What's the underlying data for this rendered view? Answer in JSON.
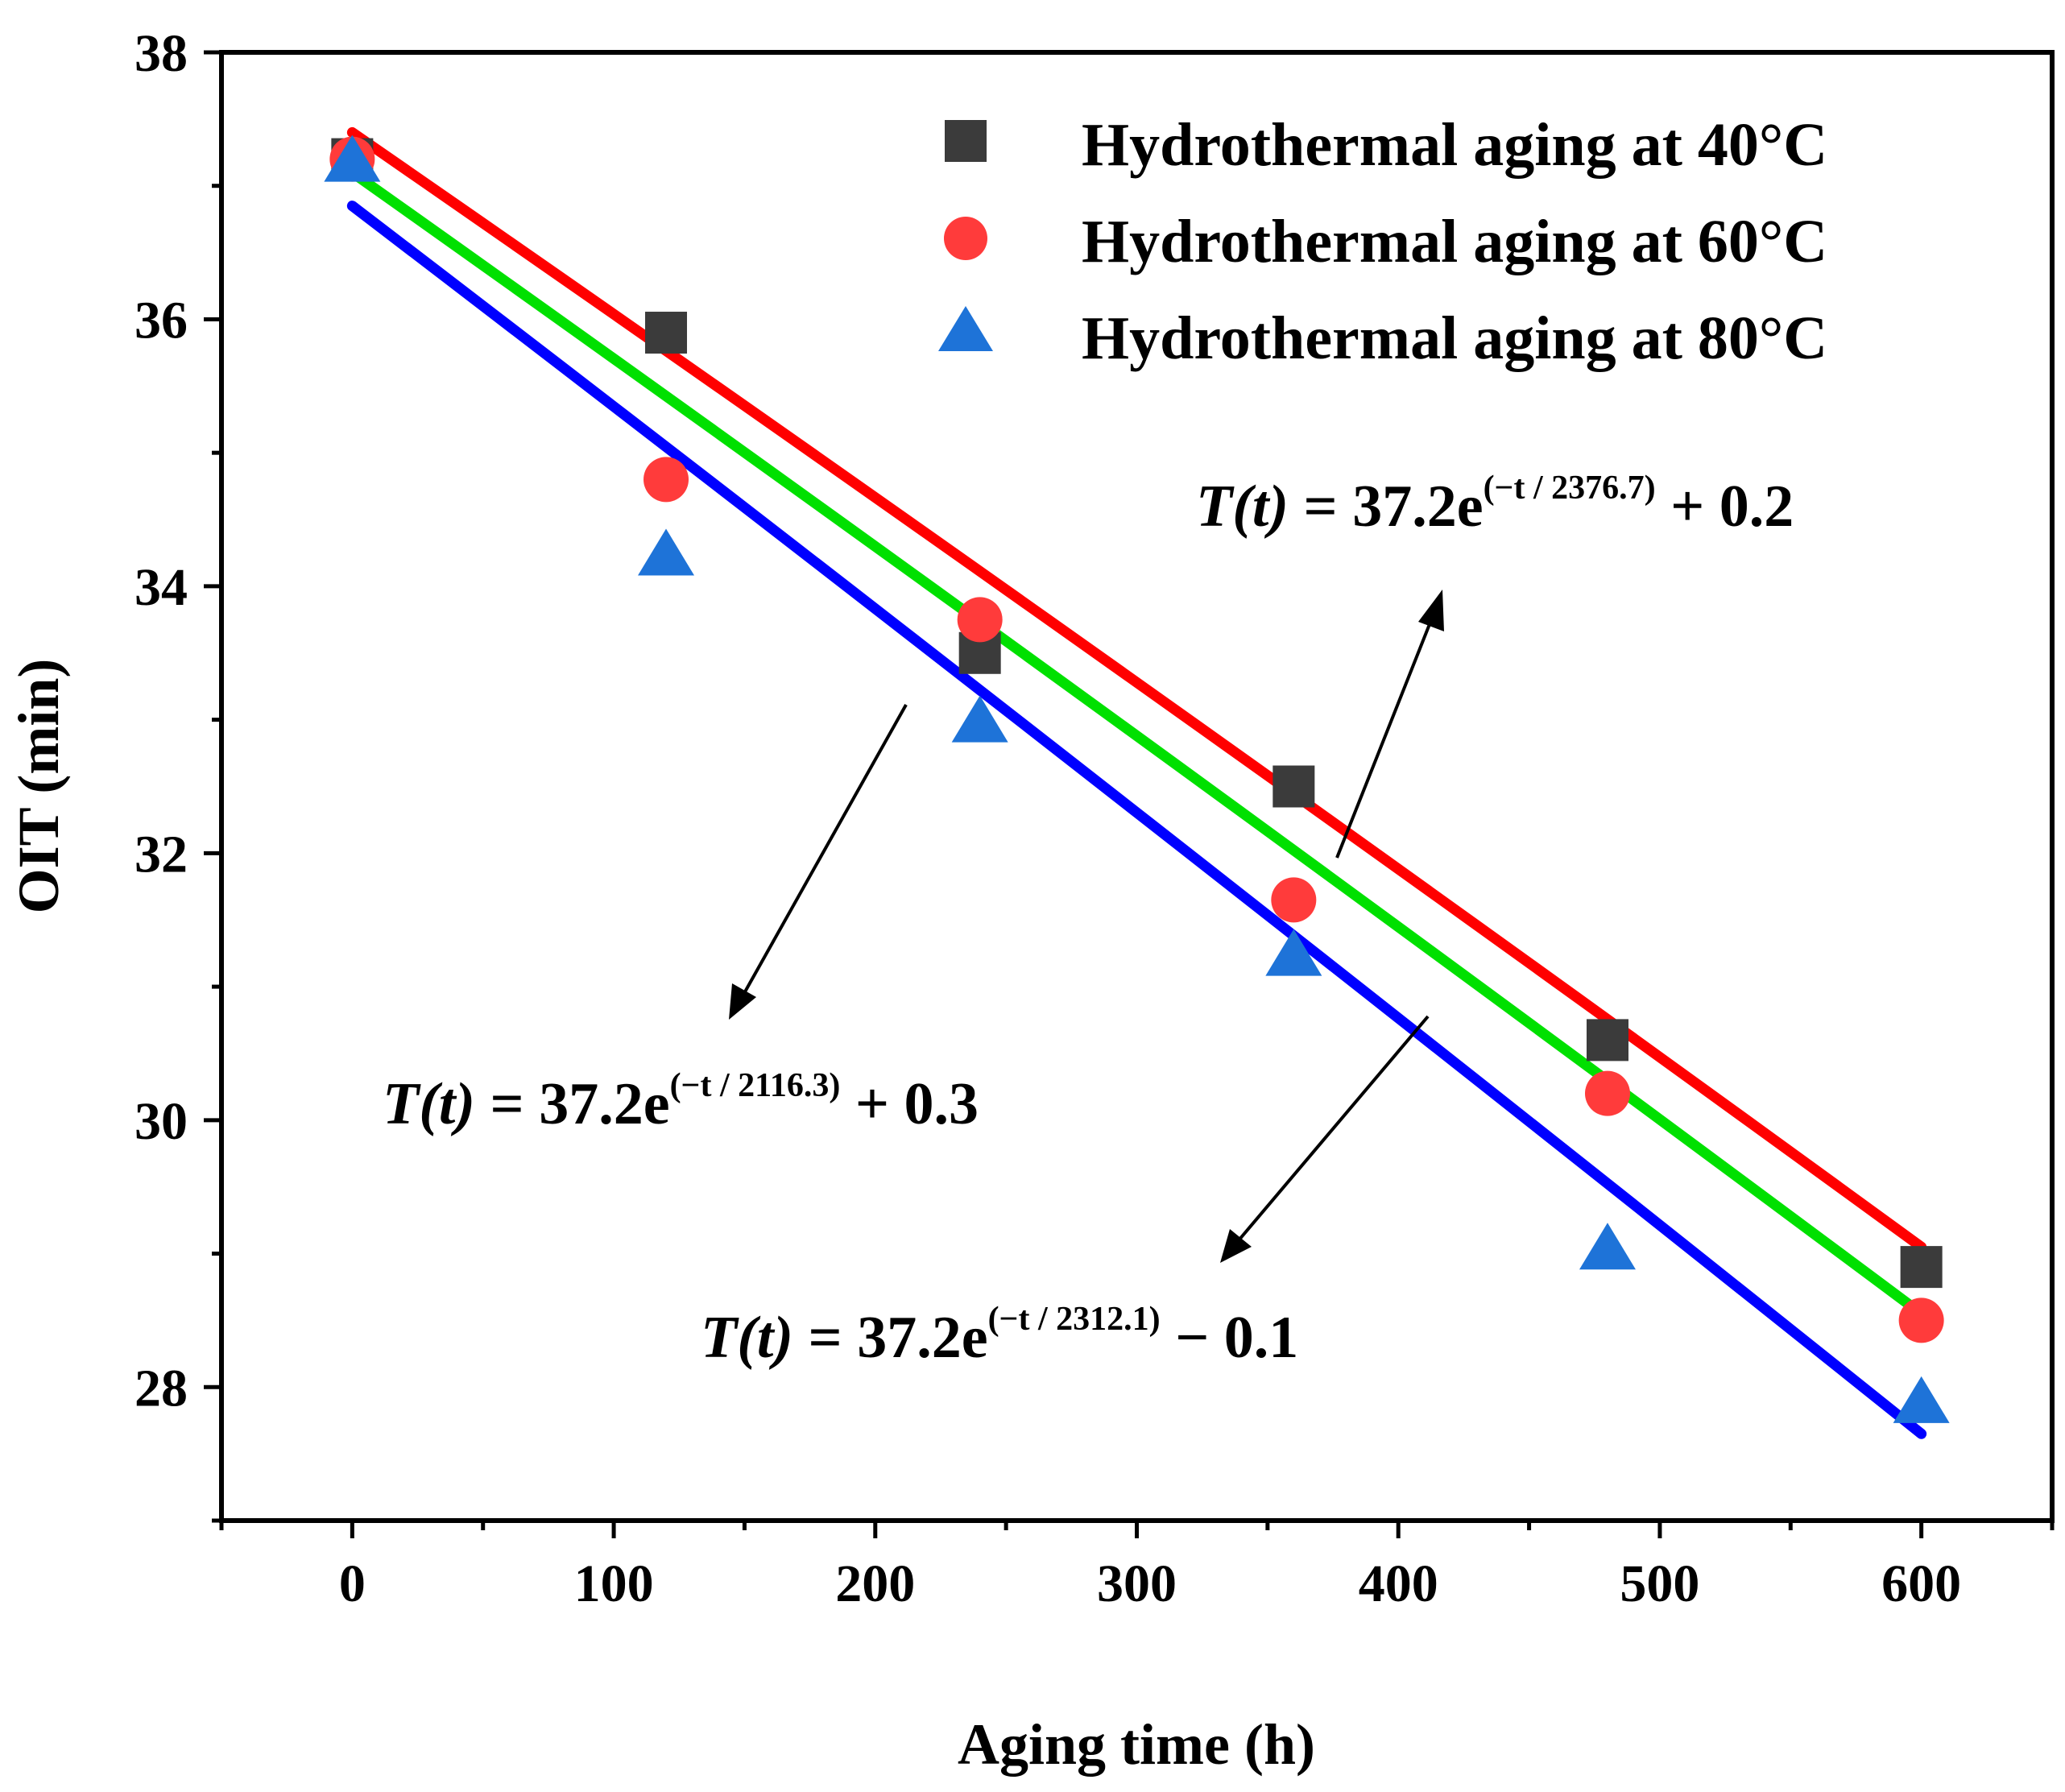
{
  "chart_data": {
    "type": "scatter",
    "title": "",
    "xlabel": "Aging time (h)",
    "ylabel": "OIT (min)",
    "xlim": [
      -50,
      650
    ],
    "ylim": [
      27,
      38
    ],
    "xticks": [
      0,
      100,
      200,
      300,
      400,
      500,
      600
    ],
    "yticks": [
      28,
      30,
      32,
      34,
      36,
      38
    ],
    "x": [
      0,
      120,
      240,
      360,
      480,
      600
    ],
    "series": [
      {
        "name": "Hydrothermal aging at 40°C",
        "marker": "square",
        "color": "#3b3b3b",
        "values": [
          37.2,
          35.9,
          33.5,
          32.5,
          30.6,
          28.9
        ],
        "fit": {
          "color": "#ff0000",
          "y0": 37.4,
          "y600": 29.05
        }
      },
      {
        "name": "Hydrothermal aging at 60°C",
        "marker": "circle",
        "color": "#ff3b3b",
        "values": [
          37.2,
          34.8,
          33.75,
          31.65,
          30.2,
          28.5
        ],
        "fit": {
          "color": "#00e000",
          "y0": 37.1,
          "y600": 28.55
        }
      },
      {
        "name": "Hydrothermal aging at 80°C",
        "marker": "triangle",
        "color": "#1e73d8",
        "values": [
          37.2,
          34.25,
          33.0,
          31.25,
          29.05,
          27.9
        ],
        "fit": {
          "color": "#0000ff",
          "y0": 36.85,
          "y600": 27.65
        }
      }
    ],
    "annotations": [
      {
        "lhs": "T(t)",
        "eq": " = 37.2e",
        "exp": "(−t / 2376.7)",
        "tail": " + 0.2"
      },
      {
        "lhs": "T(t)",
        "eq": " = 37.2e",
        "exp": "(−t / 2116.3)",
        "tail": " + 0.3"
      },
      {
        "lhs": "T(t)",
        "eq": " = 37.2e",
        "exp": "(−t / 2312.1)",
        "tail": " − 0.1"
      }
    ]
  }
}
